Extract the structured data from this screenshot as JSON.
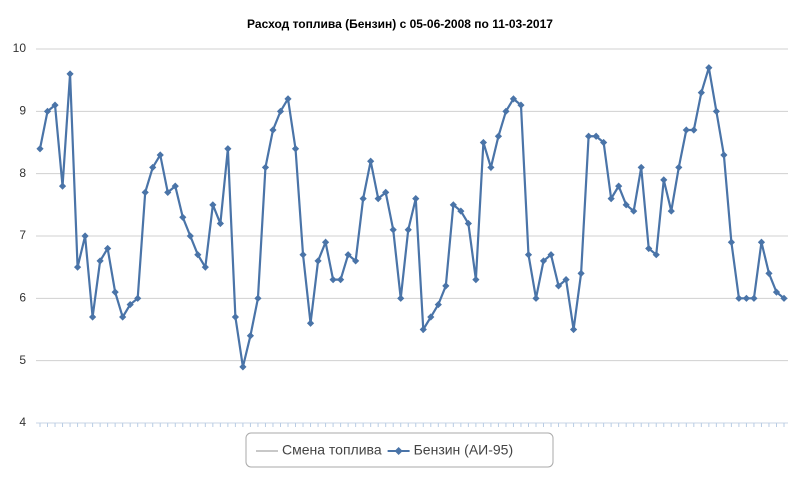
{
  "chart_data": {
    "type": "line",
    "title": "Расход топлива (Бензин) с 05-06-2008 по 11-03-2017",
    "ylim": [
      4,
      10
    ],
    "yticks": [
      4,
      5,
      6,
      7,
      8,
      9,
      10
    ],
    "grid": true,
    "series": [
      {
        "name": "Смена топлива",
        "color": "#c8c8c8"
      },
      {
        "name": "Бензин (АИ-95)",
        "color": "#4a74a8",
        "values": [
          8.4,
          9.0,
          9.1,
          7.8,
          9.6,
          6.5,
          7.0,
          5.7,
          6.6,
          6.8,
          6.1,
          5.7,
          5.9,
          6.0,
          7.7,
          8.1,
          8.3,
          7.7,
          7.8,
          7.3,
          7.0,
          6.7,
          6.5,
          7.5,
          7.2,
          8.4,
          5.7,
          4.9,
          5.4,
          6.0,
          8.1,
          8.7,
          9.0,
          9.2,
          8.4,
          6.7,
          5.6,
          6.6,
          6.9,
          6.3,
          6.3,
          6.7,
          6.6,
          7.6,
          8.2,
          7.6,
          7.7,
          7.1,
          6.0,
          7.1,
          7.6,
          5.5,
          5.7,
          5.9,
          6.2,
          7.5,
          7.4,
          7.2,
          6.3,
          8.5,
          8.1,
          8.6,
          9.0,
          9.2,
          9.1,
          6.7,
          6.0,
          6.6,
          6.7,
          6.2,
          6.3,
          5.5,
          6.4,
          8.6,
          8.6,
          8.5,
          7.6,
          7.8,
          7.5,
          7.4,
          8.1,
          6.8,
          6.7,
          7.9,
          7.4,
          8.1,
          8.7,
          8.7,
          9.3,
          9.7,
          9.0,
          8.3,
          6.9,
          6.0,
          6.0,
          6.0,
          6.9,
          6.4,
          6.1,
          6.0
        ]
      }
    ]
  }
}
